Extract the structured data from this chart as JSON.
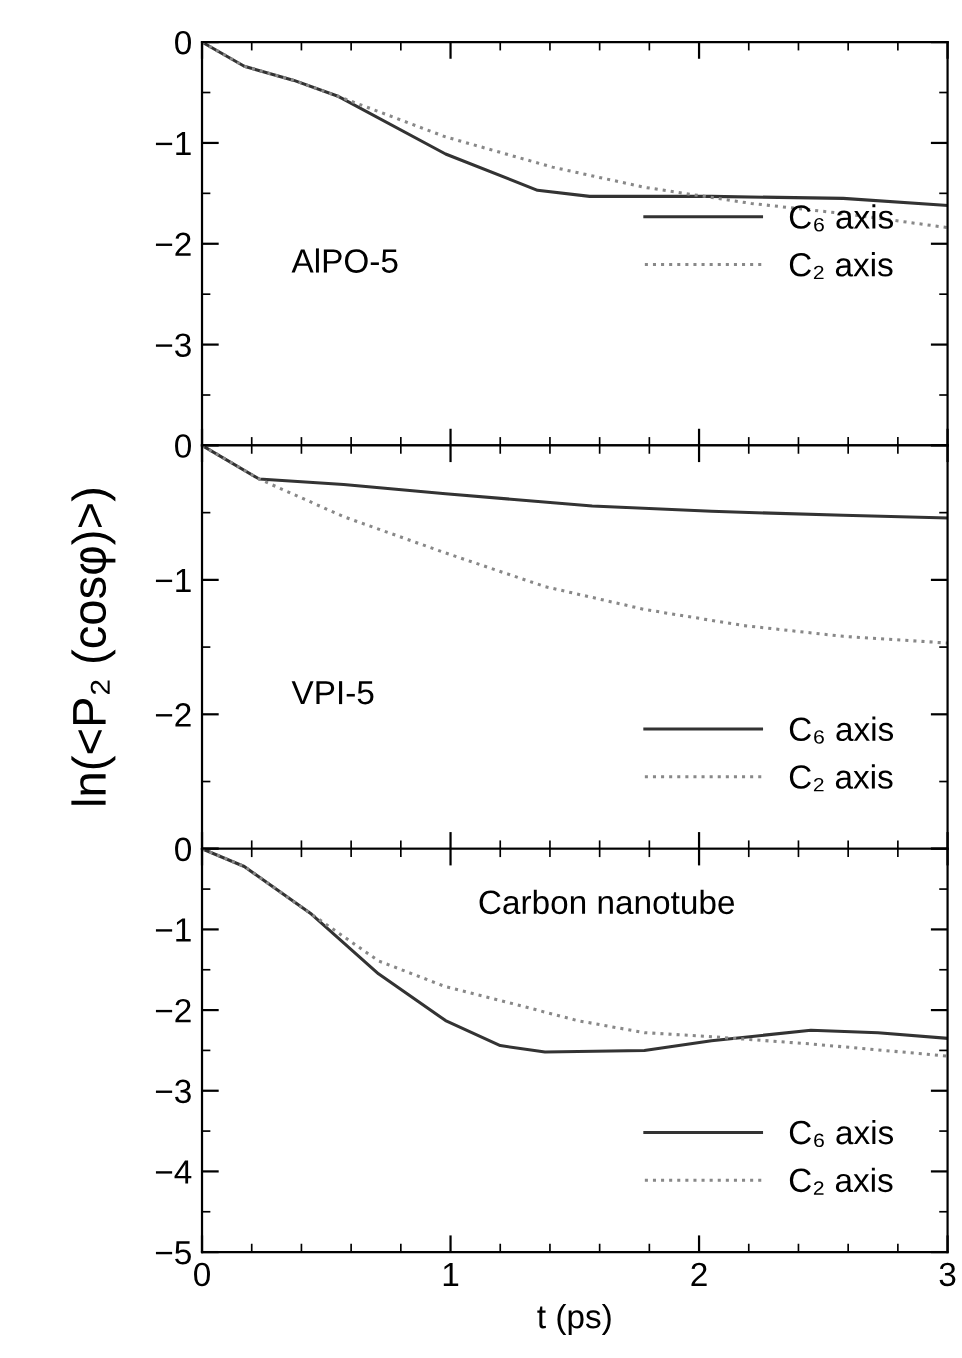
{
  "chart_data": [
    {
      "type": "line",
      "annotations": [
        "AlPO-5"
      ],
      "xlim": [
        0,
        3
      ],
      "xticks": [
        0,
        1,
        2,
        3
      ],
      "ylim": [
        -4,
        0
      ],
      "yticks": [
        0,
        -1,
        -2,
        -3,
        {
          "value": -4,
          "label": null
        }
      ],
      "tick_labels": "y",
      "legend": "center right",
      "grid": false,
      "series": [
        {
          "name": "C₆ axis",
          "color": "#333333",
          "line_style": "solid",
          "x": [
            0,
            0.17,
            0.37,
            0.55,
            0.98,
            1.35,
            1.56,
            2.05,
            2.58,
            3
          ],
          "values": [
            0,
            -0.24,
            -0.38,
            -0.54,
            -1.11,
            -1.47,
            -1.53,
            -1.53,
            -1.55,
            -1.62
          ]
        },
        {
          "name": "C₂ axis",
          "color": "#888888",
          "line_style": "dotted",
          "x": [
            0,
            0.17,
            0.37,
            0.55,
            0.98,
            1.41,
            1.78,
            2.21,
            2.58,
            3
          ],
          "values": [
            0,
            -0.24,
            -0.38,
            -0.54,
            -0.94,
            -1.24,
            -1.44,
            -1.6,
            -1.7,
            -1.84
          ]
        }
      ]
    },
    {
      "type": "line",
      "ylabel": "ln(<P₂ (cosφ)>)",
      "annotations": [
        "VPI-5"
      ],
      "xlim": [
        0,
        3
      ],
      "xticks": [
        0,
        1,
        2,
        3
      ],
      "ylim": [
        -3,
        0
      ],
      "yticks": [
        0,
        -1,
        -2,
        {
          "value": -3,
          "label": null
        }
      ],
      "tick_labels": "y",
      "legend": "lower right",
      "grid": false,
      "series": [
        {
          "name": "C₆ axis",
          "color": "#333333",
          "line_style": "solid",
          "x": [
            0,
            0.23,
            0.57,
            0.98,
            1.57,
            2.05,
            2.58,
            3
          ],
          "values": [
            0,
            -0.25,
            -0.29,
            -0.36,
            -0.45,
            -0.49,
            -0.52,
            -0.54
          ]
        },
        {
          "name": "C₂ axis",
          "color": "#888888",
          "line_style": "dotted",
          "x": [
            0,
            0.23,
            0.57,
            0.98,
            1.38,
            1.78,
            2.18,
            2.58,
            3
          ],
          "values": [
            0,
            -0.25,
            -0.53,
            -0.8,
            -1.05,
            -1.22,
            -1.34,
            -1.42,
            -1.47
          ]
        }
      ]
    },
    {
      "type": "line",
      "xlabel": "t (ps)",
      "annotations": [
        "Carbon nanotube"
      ],
      "xlim": [
        0,
        3
      ],
      "xticks": [
        0,
        1,
        2,
        3
      ],
      "ylim": [
        -5,
        0
      ],
      "yticks": [
        0,
        -1,
        -2,
        -3,
        -4,
        -5
      ],
      "legend": "lower right",
      "grid": false,
      "series": [
        {
          "name": "C₆ axis",
          "color": "#333333",
          "line_style": "solid",
          "x": [
            0,
            0.17,
            0.44,
            0.71,
            0.98,
            1.2,
            1.38,
            1.78,
            2.05,
            2.45,
            2.72,
            3
          ],
          "values": [
            0,
            -0.22,
            -0.81,
            -1.55,
            -2.13,
            -2.44,
            -2.52,
            -2.5,
            -2.38,
            -2.25,
            -2.28,
            -2.35
          ]
        },
        {
          "name": "C₂ axis",
          "color": "#888888",
          "line_style": "dotted",
          "x": [
            0,
            0.17,
            0.44,
            0.71,
            0.98,
            1.25,
            1.51,
            1.78,
            2.05,
            2.45,
            3
          ],
          "values": [
            0,
            -0.22,
            -0.81,
            -1.39,
            -1.71,
            -1.92,
            -2.13,
            -2.28,
            -2.33,
            -2.42,
            -2.57
          ]
        }
      ]
    }
  ]
}
